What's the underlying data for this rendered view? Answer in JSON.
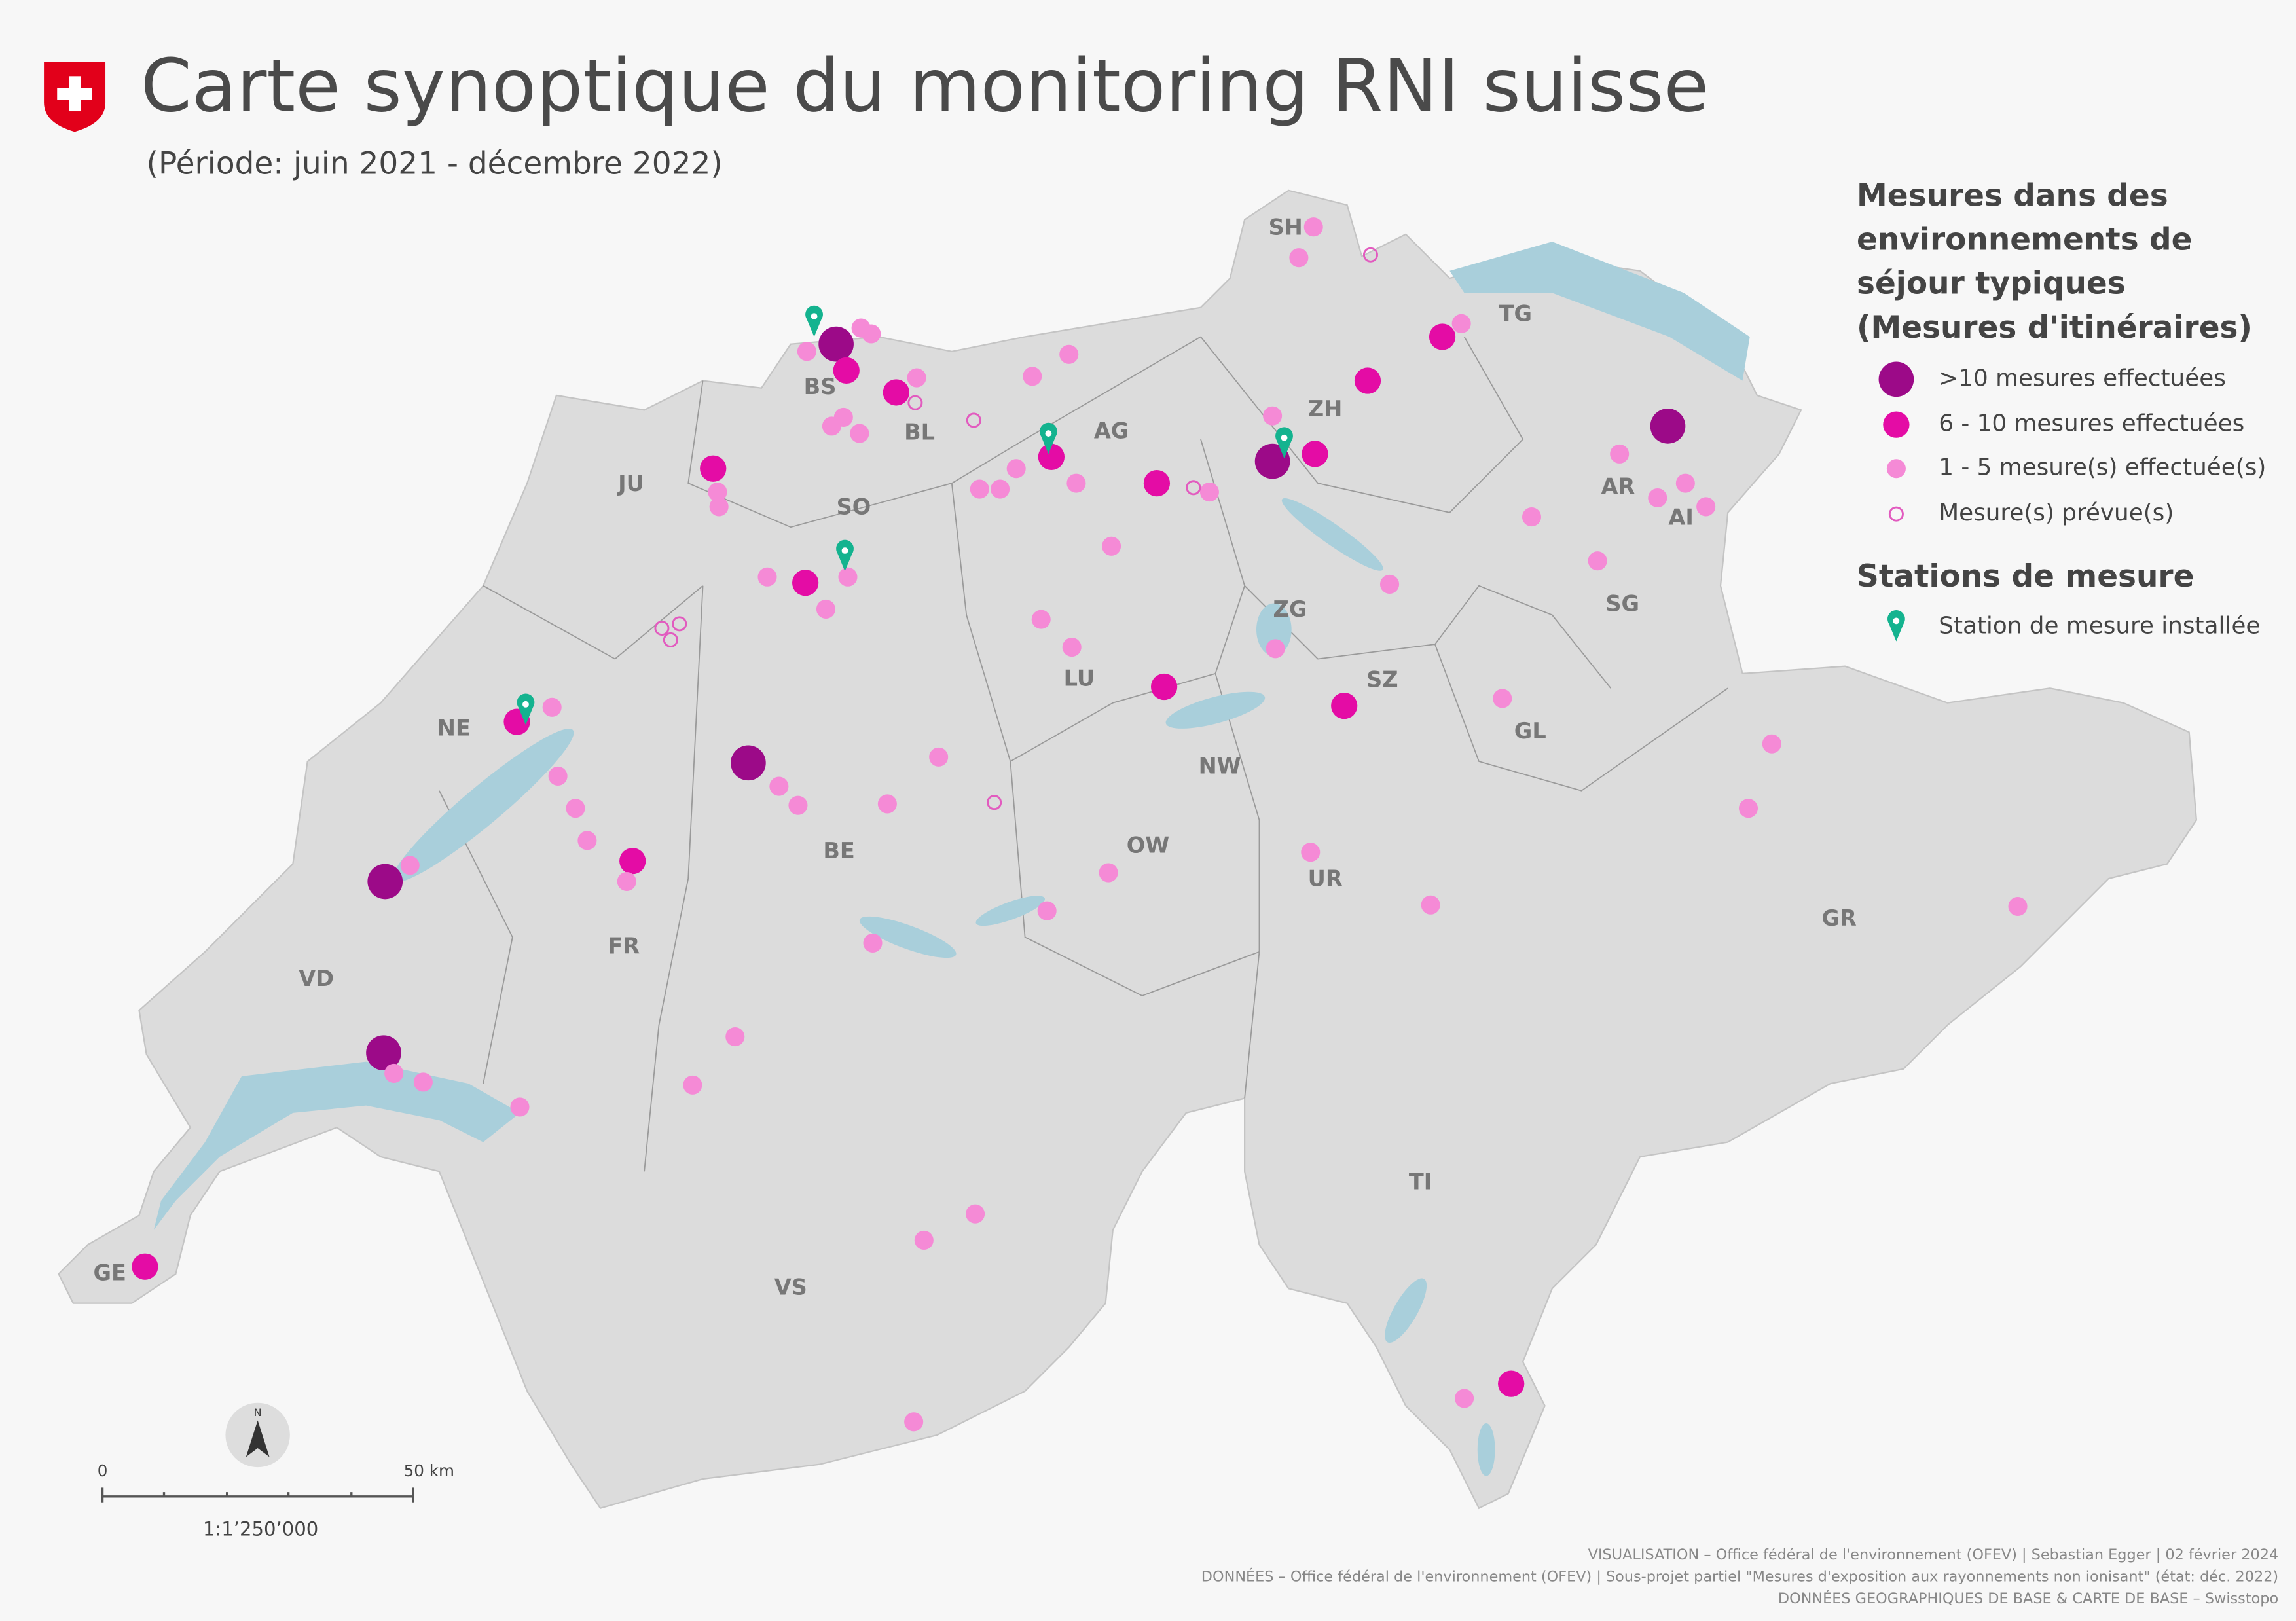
{
  "header": {
    "title": "Carte synoptique du monitoring RNI suisse",
    "subtitle": "(Période: juin 2021 - décembre 2022)"
  },
  "legend": {
    "title": [
      "Mesures dans des",
      "environnements de",
      "séjour typiques",
      "(Mesures d'itinéraires)"
    ],
    "items": [
      ">10 mesures effectuées",
      "6 - 10 mesures effectuées",
      "1 - 5 mesure(s) effectuée(s)",
      "Mesure(s) prévue(s)"
    ],
    "stations_title": "Stations de mesure",
    "station_item": "Station de mesure installée"
  },
  "cantons": [
    "SH",
    "TG",
    "BS",
    "BL",
    "AG",
    "ZH",
    "JU",
    "SO",
    "AR",
    "AI",
    "SG",
    "ZG",
    "LU",
    "SZ",
    "GL",
    "NE",
    "NW",
    "BE",
    "OW",
    "UR",
    "GR",
    "FR",
    "VD",
    "TI",
    "VS",
    "GE"
  ],
  "scale": {
    "north": "N",
    "start": "0",
    "end": "50 km",
    "ratio": "1:1’250’000"
  },
  "credits": [
    "VISUALISATION – Office fédéral de l'environnement (OFEV) | Sebastian Egger | 02 février 2024",
    "DONNÉES – Office fédéral de l'environnement (OFEV) | Sous-projet partiel \"Mesures d'exposition aux rayonnements non ionisant\" (état: déc. 2022)",
    "DONNÉES GEOGRAPHIQUES DE BASE & CARTE DE BASE – Swisstopo"
  ]
}
